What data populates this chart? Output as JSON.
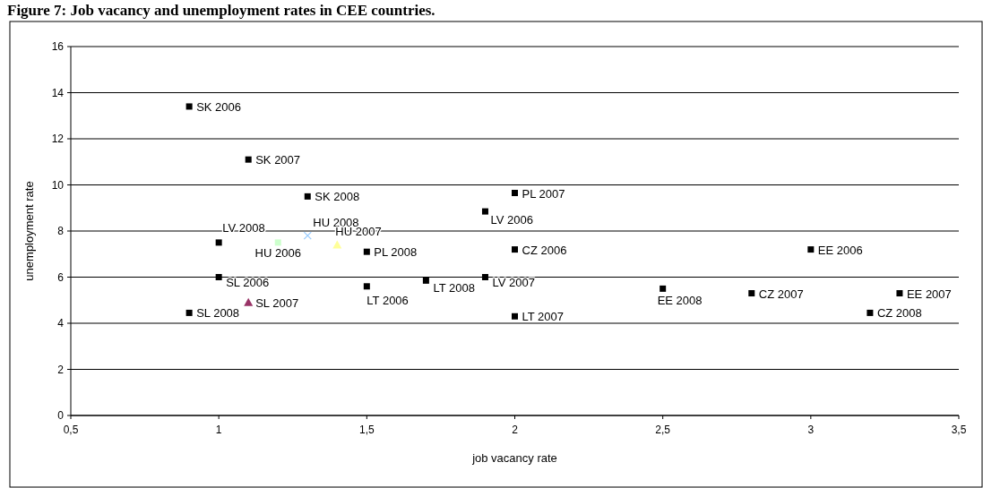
{
  "chart_data": {
    "type": "scatter",
    "title": "Figure 7: Job vacancy and unemployment rates in CEE countries.",
    "xlabel": "job vacancy rate",
    "ylabel": "unemployment rate",
    "xlim": [
      0.5,
      3.5
    ],
    "xticks": [
      {
        "value": 0.5,
        "label": "0,5"
      },
      1,
      {
        "value": 1.5,
        "label": "1,5"
      },
      2,
      {
        "value": 2.5,
        "label": "2,5"
      },
      3,
      {
        "value": 3.5,
        "label": "3,5"
      }
    ],
    "ylim": [
      0,
      16
    ],
    "yticks": [
      0,
      2,
      4,
      6,
      8,
      10,
      12,
      14,
      16
    ],
    "grid": "y",
    "marker": "square",
    "series": [
      {
        "name": "SK 2006",
        "color": "#000000",
        "x": [
          0.9
        ],
        "values": [
          13.4
        ]
      },
      {
        "name": "SK 2007",
        "color": "#000000",
        "x": [
          1.1
        ],
        "values": [
          11.1
        ]
      },
      {
        "name": "SK 2008",
        "color": "#000000",
        "x": [
          1.3
        ],
        "values": [
          9.5
        ]
      },
      {
        "name": "PL 2007",
        "color": "#000000",
        "x": [
          2.0
        ],
        "values": [
          9.65
        ]
      },
      {
        "name": "LV 2006",
        "color": "#000000",
        "x": [
          1.9
        ],
        "values": [
          8.85
        ]
      },
      {
        "name": "LV 2008",
        "color": "#000000",
        "x": [
          1.0
        ],
        "values": [
          7.5
        ]
      },
      {
        "name": "HU 2006",
        "color": "#ccffcc",
        "x": [
          1.2
        ],
        "values": [
          7.5
        ]
      },
      {
        "name": "HU 2008",
        "color": "#99ccff",
        "marker": "cross",
        "x": [
          1.3
        ],
        "values": [
          7.8
        ]
      },
      {
        "name": "HU 2007",
        "color": "#ffff99",
        "marker": "triangle",
        "x": [
          1.4
        ],
        "values": [
          7.4
        ]
      },
      {
        "name": "PL 2008",
        "color": "#000000",
        "x": [
          1.5
        ],
        "values": [
          7.1
        ]
      },
      {
        "name": "CZ 2006",
        "color": "#000000",
        "x": [
          2.0
        ],
        "values": [
          7.2
        ]
      },
      {
        "name": "EE 2006",
        "color": "#000000",
        "x": [
          3.0
        ],
        "values": [
          7.2
        ]
      },
      {
        "name": "SL 2006",
        "color": "#000000",
        "x": [
          1.0
        ],
        "values": [
          6.0
        ]
      },
      {
        "name": "LV 2007",
        "color": "#000000",
        "x": [
          1.9
        ],
        "values": [
          6.0
        ]
      },
      {
        "name": "LT 2008",
        "color": "#000000",
        "x": [
          1.7
        ],
        "values": [
          5.85
        ]
      },
      {
        "name": "LT 2006",
        "color": "#000000",
        "x": [
          1.5
        ],
        "values": [
          5.6
        ]
      },
      {
        "name": "EE 2008",
        "color": "#000000",
        "x": [
          2.5
        ],
        "values": [
          5.5
        ]
      },
      {
        "name": "CZ 2007",
        "color": "#000000",
        "x": [
          2.8
        ],
        "values": [
          5.3
        ]
      },
      {
        "name": "EE 2007",
        "color": "#000000",
        "x": [
          3.3
        ],
        "values": [
          5.3
        ]
      },
      {
        "name": "SL 2007",
        "color": "#993366",
        "marker": "triangle",
        "x": [
          1.1
        ],
        "values": [
          4.9
        ]
      },
      {
        "name": "SL 2008",
        "color": "#000000",
        "x": [
          0.9
        ],
        "values": [
          4.45
        ]
      },
      {
        "name": "CZ 2008",
        "color": "#000000",
        "x": [
          3.2
        ],
        "values": [
          4.45
        ]
      },
      {
        "name": "LT 2007",
        "color": "#000000",
        "x": [
          2.0
        ],
        "values": [
          4.3
        ]
      }
    ]
  }
}
